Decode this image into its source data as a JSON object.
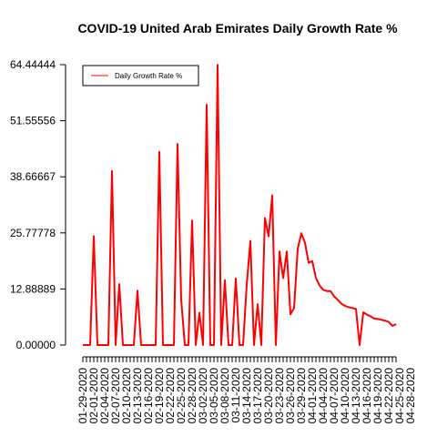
{
  "chart_data": {
    "type": "line",
    "title": "COVID-19 United Arab Emirates Daily Growth Rate %",
    "xlabel": "",
    "ylabel": "",
    "ylim": [
      0,
      64.44444
    ],
    "y_ticks": [
      "0.00000",
      "12.88889",
      "25.77778",
      "38.66667",
      "51.55556",
      "64.44444"
    ],
    "y_tick_values": [
      0,
      12.88889,
      25.77778,
      38.66667,
      51.55556,
      64.44444
    ],
    "x_tick_labels": [
      "01-29-2020",
      "02-01-2020",
      "02-04-2020",
      "02-07-2020",
      "02-10-2020",
      "02-13-2020",
      "02-16-2020",
      "02-19-2020",
      "02-22-2020",
      "02-25-2020",
      "02-28-2020",
      "03-02-2020",
      "03-05-2020",
      "03-08-2020",
      "03-11-2020",
      "03-14-2020",
      "03-17-2020",
      "03-20-2020",
      "03-23-2020",
      "03-26-2020",
      "03-29-2020",
      "04-01-2020",
      "04-04-2020",
      "04-07-2020",
      "04-10-2020",
      "04-13-2020",
      "04-16-2020",
      "04-19-2020",
      "04-22-2020",
      "04-25-2020",
      "04-28-2020"
    ],
    "grid": false,
    "legend_position": "top-left",
    "line_color": "#ff0000",
    "series": [
      {
        "name": "Daily Growth Rate %",
        "values": [
          0,
          0,
          0,
          25,
          0,
          0,
          0,
          0,
          40,
          0,
          14,
          0,
          0,
          0,
          0,
          12.5,
          0,
          0,
          0,
          0,
          0,
          44.4,
          0,
          0,
          0,
          0,
          46.2,
          10.5,
          0,
          0,
          28.6,
          0,
          7.4,
          0,
          55.2,
          0,
          0,
          64.4,
          0,
          14.9,
          0,
          0,
          15.3,
          0,
          0,
          13.9,
          23.9,
          0,
          9.4,
          0,
          29.2,
          25.0,
          34.4,
          0,
          21.5,
          15.4,
          21.5,
          7.1,
          8.5,
          22.1,
          25.7,
          23.5,
          18.9,
          19.3,
          15.4,
          13.7,
          12.7,
          12.4,
          12.4,
          11.2,
          10.4,
          9.5,
          9.0,
          8.7,
          8.5,
          8.3,
          0,
          7.5,
          7.0,
          6.6,
          6.1,
          6.0,
          5.8,
          5.6,
          5.3,
          4.4,
          4.8
        ]
      }
    ]
  }
}
